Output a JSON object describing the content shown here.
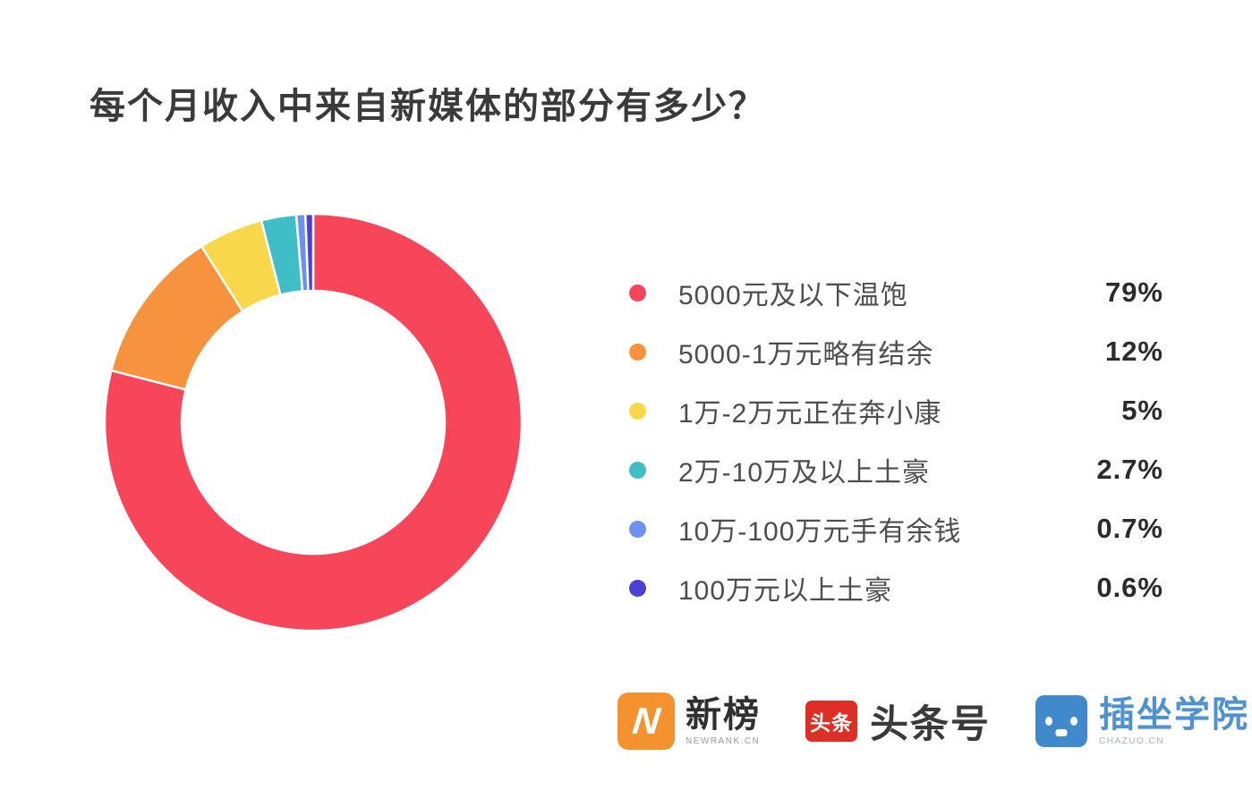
{
  "title": "每个月收入中来自新媒体的部分有多少？",
  "chart_data": {
    "type": "pie",
    "subtype": "donut",
    "title": "每个月收入中来自新媒体的部分有多少？",
    "categories": [
      "5000元及以下温饱",
      "5000-1万元略有结余",
      "1万-2万元正在奔小康",
      "2万-10万及以上土豪",
      "10万-100万元手有余钱",
      "100万元以上土豪"
    ],
    "values": [
      79,
      12,
      5,
      2.7,
      0.7,
      0.6
    ],
    "value_labels": [
      "79%",
      "12%",
      "5%",
      "2.7%",
      "0.7%",
      "0.6%"
    ],
    "colors": [
      "#f7455a",
      "#f7923e",
      "#f8d74a",
      "#3fbec8",
      "#6c92ee",
      "#4c41d2"
    ],
    "start_angle_deg": 0,
    "direction": "clockwise",
    "donut_hole_ratio": 0.63,
    "legend_position": "right",
    "gap_color": "#ffffff"
  },
  "footer": {
    "logos": [
      {
        "name": "newrank",
        "icon_letter": "N",
        "icon_bg": "#f49230",
        "text": "新榜",
        "subtext": "NEWRANK.CN"
      },
      {
        "name": "toutiao",
        "icon_text": "头条",
        "icon_bg": "#dd2f26",
        "text": "头条号"
      },
      {
        "name": "chazuo",
        "icon_bg": "#4189cd",
        "text": "插坐学院",
        "subtext": "CHAZUO.CN"
      }
    ]
  }
}
